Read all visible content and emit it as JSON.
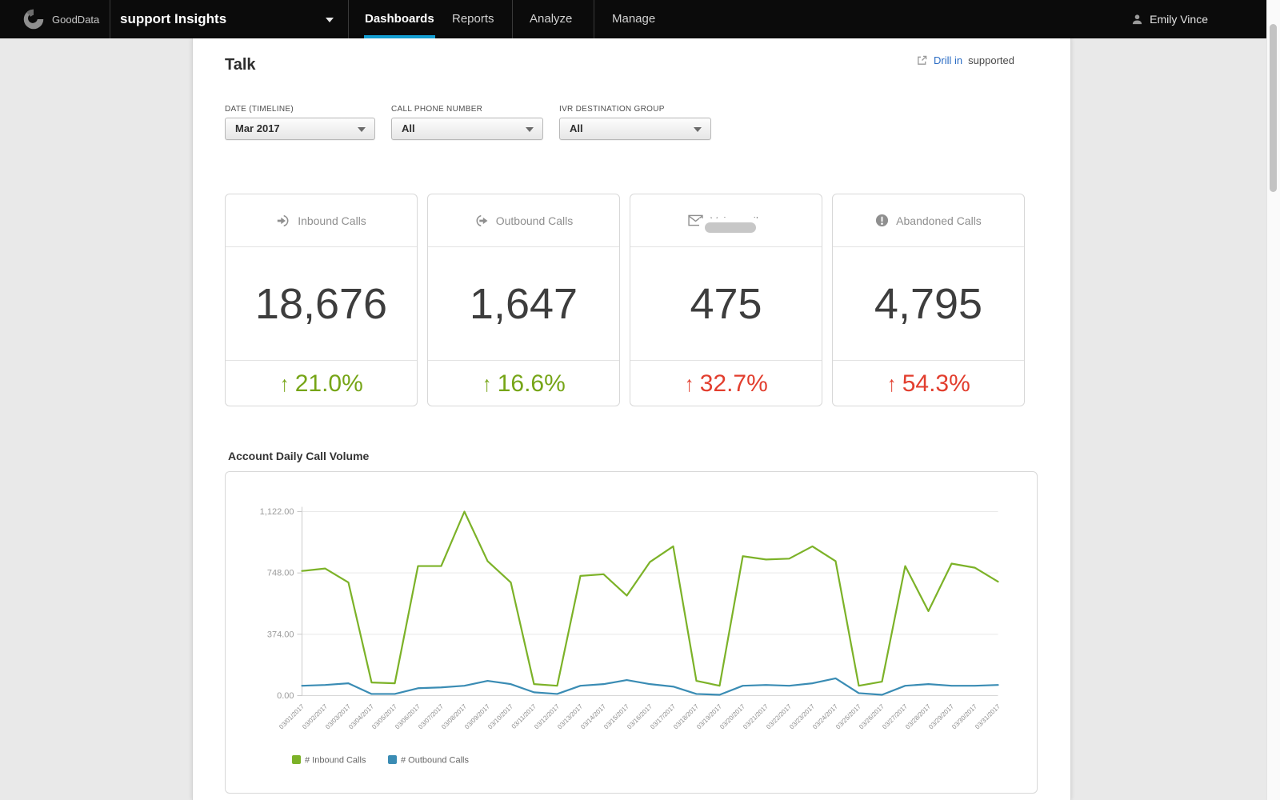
{
  "topbar": {
    "logo_text": "GoodData",
    "project": "support Insights",
    "tabs": [
      {
        "label": "Dashboards",
        "active": true
      },
      {
        "label": "Reports",
        "active": false
      },
      {
        "label": "Analyze",
        "active": false
      },
      {
        "label": "Manage",
        "active": false
      }
    ],
    "user_name": "Emily Vince"
  },
  "page": {
    "title": "Talk",
    "drill_link_text": "Drill in",
    "drill_suffix_text": "supported"
  },
  "filters": [
    {
      "label": "DATE (TIMELINE)",
      "value": "Mar 2017"
    },
    {
      "label": "CALL PHONE NUMBER",
      "value": "All"
    },
    {
      "label": "IVR DESTINATION GROUP",
      "value": "All"
    }
  ],
  "kpis": [
    {
      "title": "Inbound Calls",
      "icon": "inbound-calls-icon",
      "value": "18,676",
      "trend": "21.0%",
      "direction": "up",
      "color": "#76a517"
    },
    {
      "title": "Outbound Calls",
      "icon": "outbound-calls-icon",
      "value": "1,647",
      "trend": "16.6%",
      "direction": "up",
      "color": "#76a517"
    },
    {
      "title": "Voicemails",
      "icon": "voicemail-icon",
      "value": "475",
      "trend": "32.7%",
      "direction": "up",
      "color": "#e23e2e"
    },
    {
      "title": "Abandoned Calls",
      "icon": "abandoned-calls-icon",
      "value": "4,795",
      "trend": "54.3%",
      "direction": "up",
      "color": "#e23e2e"
    }
  ],
  "chart_section": {
    "title": "Account Daily Call Volume"
  },
  "chart_data": {
    "type": "line",
    "title": "Account Daily Call Volume",
    "x": [
      "03/01/2017",
      "03/02/2017",
      "03/03/2017",
      "03/04/2017",
      "03/05/2017",
      "03/06/2017",
      "03/07/2017",
      "03/08/2017",
      "03/09/2017",
      "03/10/2017",
      "03/11/2017",
      "03/12/2017",
      "03/13/2017",
      "03/14/2017",
      "03/15/2017",
      "03/16/2017",
      "03/17/2017",
      "03/18/2017",
      "03/19/2017",
      "03/20/2017",
      "03/21/2017",
      "03/22/2017",
      "03/23/2017",
      "03/24/2017",
      "03/25/2017",
      "03/26/2017",
      "03/27/2017",
      "03/28/2017",
      "03/29/2017",
      "03/30/2017",
      "03/31/2017"
    ],
    "series": [
      {
        "name": "# Inbound Calls",
        "color": "#7cb228",
        "values": [
          760,
          775,
          690,
          80,
          75,
          790,
          790,
          1122,
          820,
          690,
          70,
          60,
          730,
          740,
          610,
          815,
          910,
          90,
          60,
          850,
          830,
          835,
          910,
          820,
          60,
          85,
          790,
          515,
          805,
          780,
          695
        ]
      },
      {
        "name": "# Outbound Calls",
        "color": "#3a8cb4",
        "values": [
          60,
          65,
          75,
          10,
          10,
          45,
          50,
          60,
          90,
          70,
          20,
          10,
          60,
          70,
          95,
          70,
          55,
          10,
          5,
          60,
          65,
          60,
          75,
          105,
          15,
          5,
          60,
          70,
          60,
          60,
          65
        ]
      }
    ],
    "ylim": [
      0,
      1122
    ],
    "yticks": [
      0,
      374,
      748,
      1122
    ],
    "ytick_labels": [
      "0.00",
      "374.00",
      "748.00",
      "1,122.00"
    ],
    "grid": true,
    "legend_position": "bottom"
  }
}
